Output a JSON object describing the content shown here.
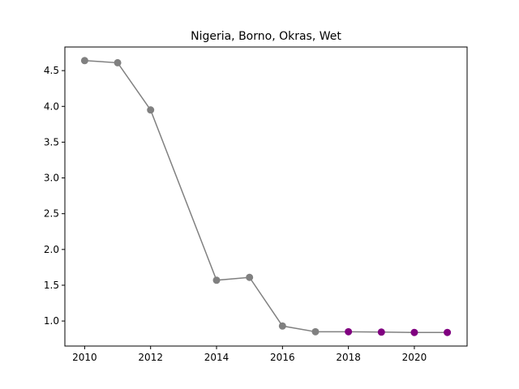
{
  "chart_data": {
    "type": "line",
    "title": "Nigeria, Borno, Okras, Wet",
    "xlabel": "",
    "ylabel": "",
    "x": [
      2010,
      2011,
      2012,
      2014,
      2015,
      2016,
      2017,
      2018,
      2019,
      2020,
      2021
    ],
    "y": [
      4.64,
      4.61,
      3.95,
      1.57,
      1.61,
      0.93,
      0.85,
      0.85,
      0.845,
      0.84,
      0.84
    ],
    "point_colors": [
      "#808080",
      "#808080",
      "#808080",
      "#808080",
      "#808080",
      "#808080",
      "#808080",
      "#800080",
      "#800080",
      "#800080",
      "#800080"
    ],
    "line_color": "#808080",
    "xlim": [
      2009.4,
      2021.6
    ],
    "ylim": [
      0.65,
      4.83
    ],
    "xticks": [
      2010,
      2012,
      2014,
      2016,
      2018,
      2020
    ],
    "yticks": [
      1.0,
      1.5,
      2.0,
      2.5,
      3.0,
      3.5,
      4.0,
      4.5
    ],
    "xtick_labels": [
      "2010",
      "2012",
      "2014",
      "2016",
      "2018",
      "2020"
    ],
    "ytick_labels": [
      "1.0",
      "1.5",
      "2.0",
      "2.5",
      "3.0",
      "3.5",
      "4.0",
      "4.5"
    ],
    "grid": false,
    "legend": "none"
  }
}
